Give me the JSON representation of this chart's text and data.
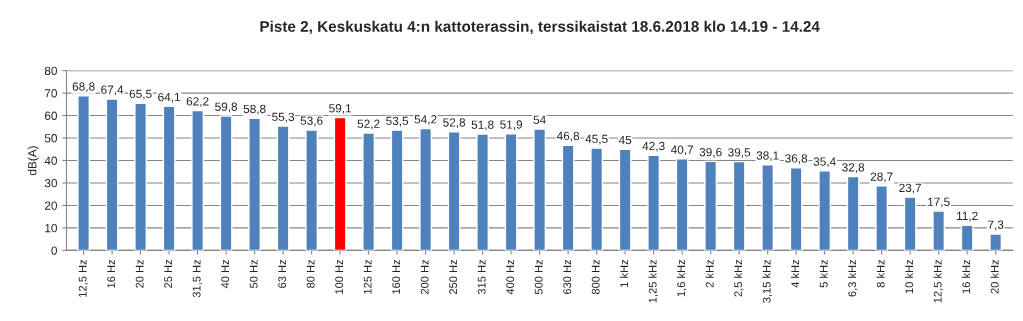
{
  "chart_data": {
    "type": "bar",
    "title": "Piste 2, Keskuskatu 4:n kattoterassin, terssikaistat 18.6.2018 klo 14.19 - 14.24",
    "ylabel": "dB(A)",
    "categories": [
      "12,5 Hz",
      "16 Hz",
      "20 Hz",
      "25 Hz",
      "31,5 Hz",
      "40 Hz",
      "50 Hz",
      "63 Hz",
      "80 Hz",
      "100 Hz",
      "125 Hz",
      "160 Hz",
      "200 Hz",
      "250 Hz",
      "315 Hz",
      "400 Hz",
      "500 Hz",
      "630 Hz",
      "800 Hz",
      "1 kHz",
      "1,25 kHz",
      "1,6 kHz",
      "2 kHz",
      "2,5 kHz",
      "3,15 kHz",
      "4 kHz",
      "5 kHz",
      "6,3 kHz",
      "8 kHz",
      "10 kHz",
      "12,5 kHz",
      "16 kHz",
      "20 kHz"
    ],
    "values": [
      68.8,
      67.4,
      65.5,
      64.1,
      62.2,
      59.8,
      58.8,
      55.3,
      53.6,
      59.1,
      52.2,
      53.5,
      54.2,
      52.8,
      51.8,
      51.9,
      54,
      46.8,
      45.5,
      45,
      42.3,
      40.7,
      39.6,
      39.5,
      38.1,
      36.8,
      35.4,
      32.8,
      28.7,
      23.7,
      17.5,
      11.2,
      7.3
    ],
    "value_labels": [
      "68,8",
      "67,4",
      "65,5",
      "64,1",
      "62,2",
      "59,8",
      "58,8",
      "55,3",
      "53,6",
      "59,1",
      "52,2",
      "53,5",
      "54,2",
      "52,8",
      "51,8",
      "51,9",
      "54",
      "46,8",
      "45,5",
      "45",
      "42,3",
      "40,7",
      "39,6",
      "39,5",
      "38,1",
      "36,8",
      "35,4",
      "32,8",
      "28,7",
      "23,7",
      "17,5",
      "11,2",
      "7,3"
    ],
    "colors": [
      "#4f81bd",
      "#4f81bd",
      "#4f81bd",
      "#4f81bd",
      "#4f81bd",
      "#4f81bd",
      "#4f81bd",
      "#4f81bd",
      "#4f81bd",
      "#ff0000",
      "#4f81bd",
      "#4f81bd",
      "#4f81bd",
      "#4f81bd",
      "#4f81bd",
      "#4f81bd",
      "#4f81bd",
      "#4f81bd",
      "#4f81bd",
      "#4f81bd",
      "#4f81bd",
      "#4f81bd",
      "#4f81bd",
      "#4f81bd",
      "#4f81bd",
      "#4f81bd",
      "#4f81bd",
      "#4f81bd",
      "#4f81bd",
      "#4f81bd",
      "#4f81bd",
      "#4f81bd",
      "#4f81bd"
    ],
    "ylim": [
      0,
      80
    ],
    "yticks": [
      0,
      10,
      20,
      30,
      40,
      50,
      60,
      70,
      80
    ],
    "grid": "y",
    "legend": false
  }
}
